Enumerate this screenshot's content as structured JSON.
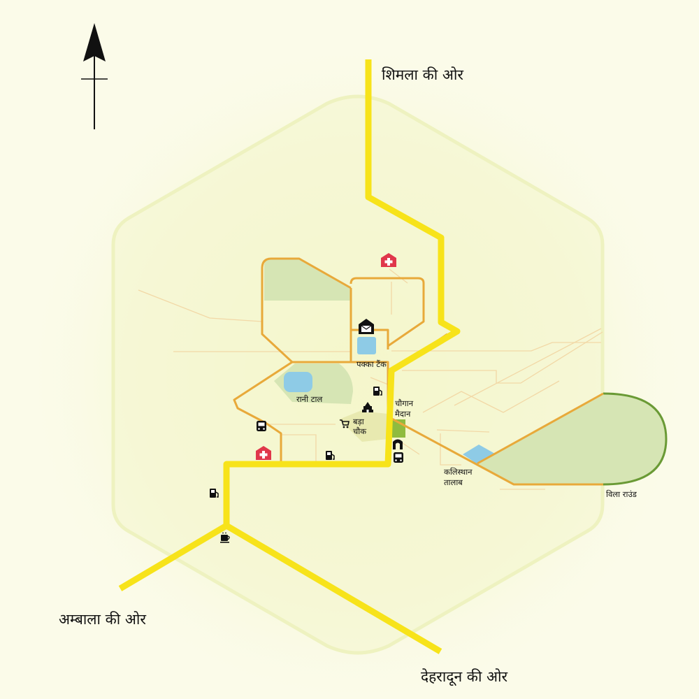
{
  "map": {
    "colors": {
      "background": "#fbfbe9",
      "highway": "#f7e31a",
      "main_road": "#e8a93a",
      "minor_road": "#f2d8a6",
      "park": "#d6e5b4",
      "park_edge": "#6a9a35",
      "water": "#8ecbe6",
      "hospital": "#e0374b",
      "boundary": "#eef2c0"
    },
    "directions": {
      "shimla": "शिमला की ओर",
      "ambala": "अम्बाला की ओर",
      "dehradun": "देहरादून की ओर"
    },
    "places": {
      "pakka_tank": "पक्का टैंक",
      "rani_tal": "रानी टाल",
      "chaugan_line1": "चौगान",
      "chaugan_line2": "मैदान",
      "bada_line1": "बड़ा",
      "bada_line2": "चौक",
      "kalesthan_line1": "कलिस्थान",
      "kalesthan_line2": "तालाब",
      "villa_round": "विला राउंड"
    },
    "icons": [
      "north-arrow-icon",
      "hospital-icon",
      "post-office-icon",
      "fuel-icon",
      "temple-icon",
      "shopping-cart-icon",
      "bus-icon",
      "cafe-icon",
      "gate-icon"
    ]
  }
}
